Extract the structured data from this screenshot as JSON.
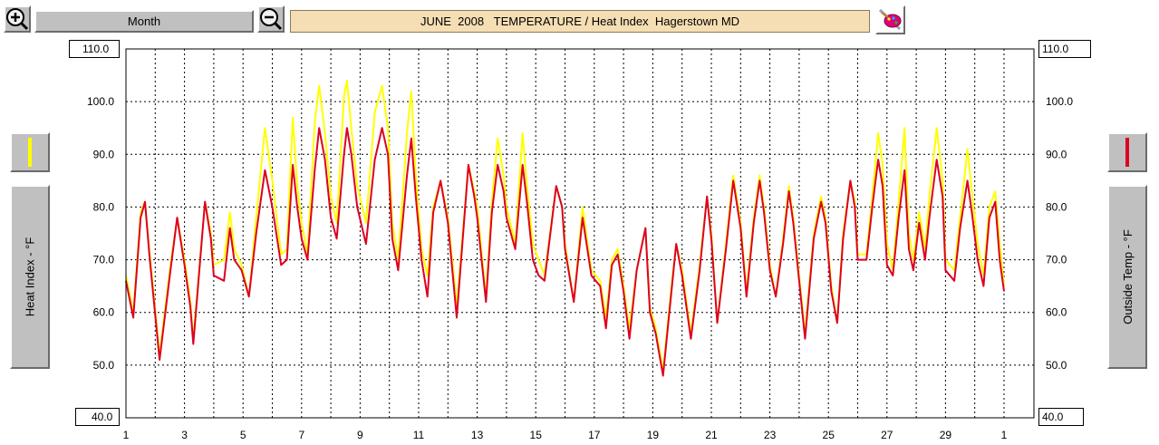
{
  "toolbar": {
    "zoom_in_icon": "zoom-in-icon",
    "zoom_out_icon": "zoom-out-icon",
    "range_label": "Month",
    "title": "JUNE  2008   TEMPERATURE / Heat Index  Hagerstown MD",
    "settings_icon": "paint-palette-icon"
  },
  "left_panel": {
    "axis_label": "Heat Index - °F",
    "series_color": "#ffff00",
    "top_value": "110.0",
    "bottom_value": "40.0"
  },
  "right_panel": {
    "axis_label": "Outside Temp - °F",
    "series_color": "#dd0022",
    "top_value": "110.0",
    "bottom_value": "40.0"
  },
  "chart_data": {
    "type": "line",
    "title": "JUNE  2008   TEMPERATURE / Heat Index  Hagerstown MD",
    "ylabel_left": "Heat Index - °F",
    "ylabel_right": "Outside Temp - °F",
    "ylim": [
      40,
      110
    ],
    "xlim": [
      1,
      31
    ],
    "x_unit": "day of month (June 2008), ending at July 1",
    "y_ticks": [
      50,
      60,
      70,
      80,
      90,
      100,
      110
    ],
    "y_tick_labels": [
      "50.0",
      "60.0",
      "70.0",
      "80.0",
      "90.0",
      "100.0",
      "110.0"
    ],
    "x_ticks": [
      1,
      2,
      3,
      4,
      5,
      6,
      7,
      8,
      9,
      10,
      11,
      12,
      13,
      14,
      15,
      16,
      17,
      18,
      19,
      20,
      21,
      22,
      23,
      24,
      25,
      26,
      27,
      28,
      29,
      30,
      31
    ],
    "x_tick_labels": [
      "1",
      "3",
      "5",
      "7",
      "9",
      "11",
      "13",
      "15",
      "17",
      "19",
      "21",
      "23",
      "25",
      "27",
      "29",
      "1"
    ],
    "x_tick_label_positions": [
      1,
      3,
      5,
      7,
      9,
      11,
      13,
      15,
      17,
      19,
      21,
      23,
      25,
      27,
      29,
      31
    ],
    "grid": true,
    "series": [
      {
        "name": "Heat Index - °F",
        "color": "#ffff00",
        "points": [
          [
            1.0,
            67
          ],
          [
            1.25,
            60
          ],
          [
            1.5,
            79
          ],
          [
            1.65,
            81
          ],
          [
            1.8,
            72
          ],
          [
            2.15,
            52
          ],
          [
            2.5,
            68
          ],
          [
            2.75,
            78
          ],
          [
            3.0,
            70
          ],
          [
            3.2,
            62
          ],
          [
            3.3,
            55
          ],
          [
            3.7,
            81
          ],
          [
            3.9,
            75
          ],
          [
            4.0,
            69
          ],
          [
            4.35,
            70
          ],
          [
            4.55,
            79
          ],
          [
            4.7,
            72
          ],
          [
            4.95,
            69
          ],
          [
            5.2,
            63
          ],
          [
            5.45,
            78
          ],
          [
            5.75,
            95
          ],
          [
            6.0,
            85
          ],
          [
            6.3,
            71
          ],
          [
            6.5,
            72
          ],
          [
            6.7,
            97
          ],
          [
            6.85,
            84
          ],
          [
            7.0,
            77
          ],
          [
            7.2,
            71
          ],
          [
            7.45,
            96
          ],
          [
            7.6,
            103
          ],
          [
            7.8,
            94
          ],
          [
            8.0,
            82
          ],
          [
            8.2,
            77
          ],
          [
            8.45,
            101
          ],
          [
            8.55,
            104
          ],
          [
            8.7,
            95
          ],
          [
            8.9,
            84
          ],
          [
            9.2,
            77
          ],
          [
            9.5,
            98
          ],
          [
            9.75,
            103
          ],
          [
            9.95,
            95
          ],
          [
            10.1,
            77
          ],
          [
            10.3,
            70
          ],
          [
            10.6,
            94
          ],
          [
            10.75,
            102
          ],
          [
            10.9,
            86
          ],
          [
            11.1,
            72
          ],
          [
            11.3,
            67
          ],
          [
            11.5,
            80
          ],
          [
            11.75,
            85
          ],
          [
            12.0,
            78
          ],
          [
            12.2,
            67
          ],
          [
            12.3,
            61
          ],
          [
            12.7,
            88
          ],
          [
            12.9,
            83
          ],
          [
            13.0,
            80
          ],
          [
            13.3,
            63
          ],
          [
            13.5,
            81
          ],
          [
            13.7,
            93
          ],
          [
            13.9,
            86
          ],
          [
            14.0,
            80
          ],
          [
            14.3,
            73
          ],
          [
            14.55,
            94
          ],
          [
            14.7,
            84
          ],
          [
            14.9,
            73
          ],
          [
            15.1,
            70
          ],
          [
            15.3,
            67
          ],
          [
            15.7,
            84
          ],
          [
            15.9,
            80
          ],
          [
            16.0,
            73
          ],
          [
            16.3,
            62
          ],
          [
            16.6,
            80
          ],
          [
            16.9,
            68
          ],
          [
            17.2,
            66
          ],
          [
            17.4,
            59
          ],
          [
            17.6,
            70
          ],
          [
            17.8,
            72
          ],
          [
            18.0,
            65
          ],
          [
            18.2,
            57
          ],
          [
            18.45,
            68
          ],
          [
            18.75,
            76
          ],
          [
            18.9,
            61
          ],
          [
            19.1,
            57
          ],
          [
            19.35,
            49
          ],
          [
            19.6,
            63
          ],
          [
            19.8,
            73
          ],
          [
            20.0,
            68
          ],
          [
            20.3,
            56
          ],
          [
            20.6,
            69
          ],
          [
            20.85,
            82
          ],
          [
            21.0,
            75
          ],
          [
            21.2,
            58
          ],
          [
            21.5,
            73
          ],
          [
            21.75,
            86
          ],
          [
            22.0,
            77
          ],
          [
            22.2,
            64
          ],
          [
            22.45,
            78
          ],
          [
            22.65,
            86
          ],
          [
            22.8,
            80
          ],
          [
            23.0,
            69
          ],
          [
            23.2,
            63
          ],
          [
            23.45,
            74
          ],
          [
            23.65,
            84
          ],
          [
            23.8,
            78
          ],
          [
            24.0,
            67
          ],
          [
            24.2,
            56
          ],
          [
            24.5,
            75
          ],
          [
            24.75,
            82
          ],
          [
            24.9,
            78
          ],
          [
            25.1,
            65
          ],
          [
            25.3,
            58
          ],
          [
            25.5,
            75
          ],
          [
            25.75,
            85
          ],
          [
            25.9,
            81
          ],
          [
            26.0,
            71
          ],
          [
            26.3,
            71
          ],
          [
            26.5,
            82
          ],
          [
            26.7,
            94
          ],
          [
            26.85,
            88
          ],
          [
            27.0,
            73
          ],
          [
            27.2,
            68
          ],
          [
            27.4,
            81
          ],
          [
            27.6,
            95
          ],
          [
            27.75,
            75
          ],
          [
            27.9,
            70
          ],
          [
            28.1,
            79
          ],
          [
            28.3,
            72
          ],
          [
            28.45,
            82
          ],
          [
            28.7,
            95
          ],
          [
            28.9,
            85
          ],
          [
            29.0,
            70
          ],
          [
            29.3,
            68
          ],
          [
            29.5,
            78
          ],
          [
            29.75,
            91
          ],
          [
            29.9,
            83
          ],
          [
            30.1,
            73
          ],
          [
            30.3,
            67
          ],
          [
            30.5,
            80
          ],
          [
            30.7,
            83
          ],
          [
            30.85,
            73
          ],
          [
            31.0,
            65
          ]
        ]
      },
      {
        "name": "Outside Temp - °F",
        "color": "#dd0022",
        "points": [
          [
            1.0,
            66
          ],
          [
            1.25,
            59
          ],
          [
            1.5,
            78
          ],
          [
            1.65,
            81
          ],
          [
            1.8,
            71
          ],
          [
            2.15,
            51
          ],
          [
            2.5,
            67
          ],
          [
            2.75,
            78
          ],
          [
            3.0,
            69
          ],
          [
            3.2,
            61
          ],
          [
            3.3,
            54
          ],
          [
            3.7,
            81
          ],
          [
            3.9,
            74
          ],
          [
            4.0,
            67
          ],
          [
            4.35,
            66
          ],
          [
            4.55,
            76
          ],
          [
            4.7,
            70
          ],
          [
            4.95,
            68
          ],
          [
            5.2,
            63
          ],
          [
            5.45,
            75
          ],
          [
            5.75,
            87
          ],
          [
            6.0,
            80
          ],
          [
            6.3,
            69
          ],
          [
            6.5,
            70
          ],
          [
            6.7,
            88
          ],
          [
            6.85,
            80
          ],
          [
            7.0,
            74
          ],
          [
            7.2,
            70
          ],
          [
            7.45,
            87
          ],
          [
            7.6,
            95
          ],
          [
            7.8,
            89
          ],
          [
            8.0,
            78
          ],
          [
            8.2,
            74
          ],
          [
            8.45,
            90
          ],
          [
            8.55,
            95
          ],
          [
            8.7,
            90
          ],
          [
            8.9,
            80
          ],
          [
            9.2,
            73
          ],
          [
            9.5,
            89
          ],
          [
            9.75,
            95
          ],
          [
            9.95,
            90
          ],
          [
            10.1,
            74
          ],
          [
            10.3,
            68
          ],
          [
            10.6,
            86
          ],
          [
            10.75,
            93
          ],
          [
            10.9,
            82
          ],
          [
            11.1,
            70
          ],
          [
            11.3,
            63
          ],
          [
            11.5,
            79
          ],
          [
            11.75,
            85
          ],
          [
            12.0,
            77
          ],
          [
            12.2,
            65
          ],
          [
            12.3,
            59
          ],
          [
            12.7,
            88
          ],
          [
            12.9,
            82
          ],
          [
            13.0,
            78
          ],
          [
            13.3,
            62
          ],
          [
            13.5,
            79
          ],
          [
            13.7,
            88
          ],
          [
            13.9,
            83
          ],
          [
            14.0,
            78
          ],
          [
            14.3,
            72
          ],
          [
            14.55,
            88
          ],
          [
            14.7,
            81
          ],
          [
            14.9,
            70
          ],
          [
            15.1,
            67
          ],
          [
            15.3,
            66
          ],
          [
            15.7,
            84
          ],
          [
            15.9,
            80
          ],
          [
            16.0,
            72
          ],
          [
            16.3,
            62
          ],
          [
            16.6,
            78
          ],
          [
            16.9,
            67
          ],
          [
            17.2,
            65
          ],
          [
            17.4,
            57
          ],
          [
            17.6,
            69
          ],
          [
            17.8,
            71
          ],
          [
            18.0,
            64
          ],
          [
            18.2,
            55
          ],
          [
            18.45,
            68
          ],
          [
            18.75,
            76
          ],
          [
            18.9,
            60
          ],
          [
            19.1,
            56
          ],
          [
            19.35,
            48
          ],
          [
            19.6,
            62
          ],
          [
            19.8,
            73
          ],
          [
            20.0,
            67
          ],
          [
            20.3,
            55
          ],
          [
            20.6,
            68
          ],
          [
            20.85,
            82
          ],
          [
            21.0,
            74
          ],
          [
            21.2,
            58
          ],
          [
            21.5,
            72
          ],
          [
            21.75,
            85
          ],
          [
            22.0,
            76
          ],
          [
            22.2,
            63
          ],
          [
            22.45,
            77
          ],
          [
            22.65,
            85
          ],
          [
            22.8,
            79
          ],
          [
            23.0,
            68
          ],
          [
            23.2,
            63
          ],
          [
            23.45,
            73
          ],
          [
            23.65,
            83
          ],
          [
            23.8,
            77
          ],
          [
            24.0,
            66
          ],
          [
            24.2,
            55
          ],
          [
            24.5,
            74
          ],
          [
            24.75,
            81
          ],
          [
            24.9,
            77
          ],
          [
            25.1,
            64
          ],
          [
            25.3,
            58
          ],
          [
            25.5,
            74
          ],
          [
            25.75,
            85
          ],
          [
            25.9,
            80
          ],
          [
            26.0,
            70
          ],
          [
            26.3,
            70
          ],
          [
            26.5,
            80
          ],
          [
            26.7,
            89
          ],
          [
            26.85,
            84
          ],
          [
            27.0,
            69
          ],
          [
            27.2,
            67
          ],
          [
            27.4,
            78
          ],
          [
            27.6,
            87
          ],
          [
            27.75,
            72
          ],
          [
            27.9,
            68
          ],
          [
            28.1,
            77
          ],
          [
            28.3,
            70
          ],
          [
            28.45,
            78
          ],
          [
            28.7,
            89
          ],
          [
            28.9,
            82
          ],
          [
            29.0,
            68
          ],
          [
            29.3,
            66
          ],
          [
            29.5,
            76
          ],
          [
            29.75,
            85
          ],
          [
            29.9,
            79
          ],
          [
            30.1,
            70
          ],
          [
            30.3,
            65
          ],
          [
            30.5,
            78
          ],
          [
            30.7,
            81
          ],
          [
            30.85,
            70
          ],
          [
            31.0,
            64
          ]
        ]
      }
    ]
  }
}
